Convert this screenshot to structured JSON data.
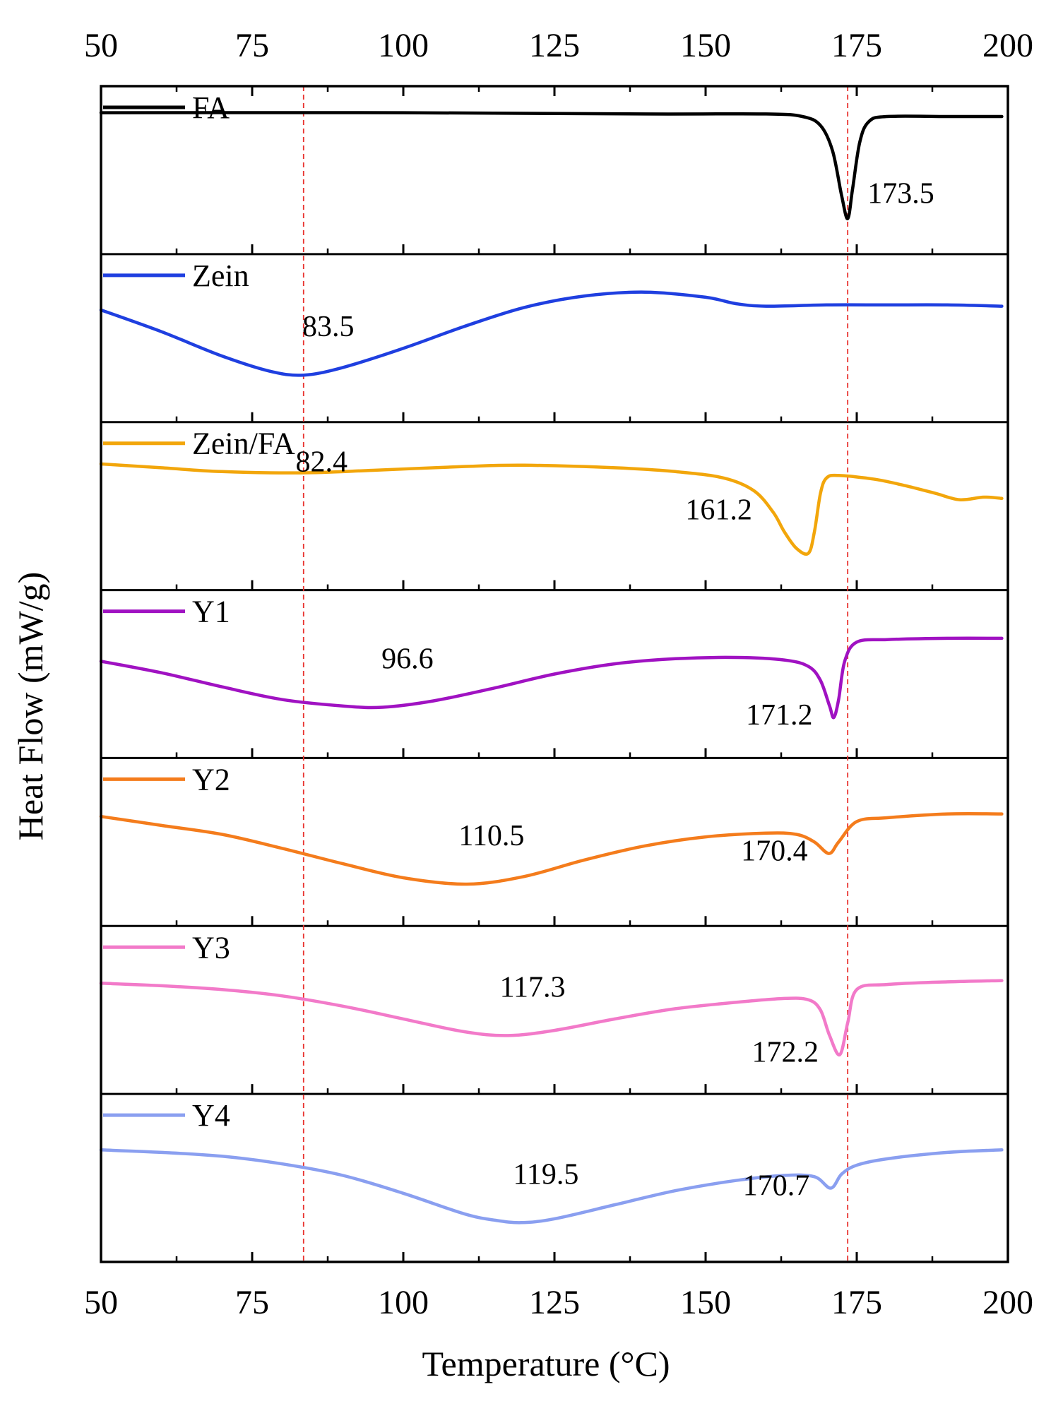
{
  "chart_data": {
    "type": "line",
    "title": "",
    "xlabel": "Temperature (°C)",
    "ylabel": "Heat Flow (mW/g)",
    "xlim": [
      50,
      200
    ],
    "xticks": [
      50,
      75,
      100,
      125,
      150,
      175,
      200
    ],
    "tick_labels": [
      "50",
      "75",
      "100",
      "125",
      "150",
      "175",
      "200"
    ],
    "reference_lines": [
      83.5,
      173.5
    ],
    "reference_color": "#e8322e",
    "series": [
      {
        "name": "FA",
        "color": "#000000",
        "points": [
          [
            50,
            0.95
          ],
          [
            100,
            0.95
          ],
          [
            140,
            0.94
          ],
          [
            160,
            0.94
          ],
          [
            166,
            0.92
          ],
          [
            169,
            0.85
          ],
          [
            171,
            0.65
          ],
          [
            172.5,
            0.3
          ],
          [
            173.5,
            0.12
          ],
          [
            174.3,
            0.35
          ],
          [
            175.5,
            0.72
          ],
          [
            177,
            0.88
          ],
          [
            180,
            0.92
          ],
          [
            190,
            0.92
          ],
          [
            199,
            0.92
          ]
        ],
        "labels": [
          {
            "text": "173.5",
            "x": 173.5
          }
        ]
      },
      {
        "name": "Zein",
        "color": "#1f3fe0",
        "points": [
          [
            50,
            0.72
          ],
          [
            60,
            0.55
          ],
          [
            70,
            0.36
          ],
          [
            78,
            0.24
          ],
          [
            83.5,
            0.21
          ],
          [
            90,
            0.27
          ],
          [
            100,
            0.42
          ],
          [
            110,
            0.59
          ],
          [
            120,
            0.74
          ],
          [
            130,
            0.83
          ],
          [
            140,
            0.86
          ],
          [
            150,
            0.82
          ],
          [
            155,
            0.77
          ],
          [
            160,
            0.75
          ],
          [
            170,
            0.76
          ],
          [
            180,
            0.76
          ],
          [
            190,
            0.76
          ],
          [
            199,
            0.75
          ]
        ],
        "labels": [
          {
            "text": "83.5",
            "x": 83.5
          }
        ]
      },
      {
        "name": "Zein/FA",
        "color": "#f2a60b",
        "points": [
          [
            50,
            0.83
          ],
          [
            60,
            0.8
          ],
          [
            70,
            0.77
          ],
          [
            83,
            0.76
          ],
          [
            95,
            0.78
          ],
          [
            110,
            0.81
          ],
          [
            120,
            0.82
          ],
          [
            135,
            0.8
          ],
          [
            145,
            0.77
          ],
          [
            153,
            0.72
          ],
          [
            158,
            0.62
          ],
          [
            161.2,
            0.45
          ],
          [
            163,
            0.3
          ],
          [
            165,
            0.17
          ],
          [
            167,
            0.13
          ],
          [
            168,
            0.3
          ],
          [
            169,
            0.6
          ],
          [
            170,
            0.72
          ],
          [
            172,
            0.74
          ],
          [
            178,
            0.71
          ],
          [
            183,
            0.66
          ],
          [
            188,
            0.6
          ],
          [
            192,
            0.55
          ],
          [
            196,
            0.57
          ],
          [
            199,
            0.56
          ]
        ],
        "labels": [
          {
            "text": "82.4",
            "x": 82.4
          },
          {
            "text": "161.2",
            "x": 161.2
          }
        ]
      },
      {
        "name": "Y1",
        "color": "#a012c2",
        "points": [
          [
            50,
            0.6
          ],
          [
            60,
            0.51
          ],
          [
            70,
            0.4
          ],
          [
            80,
            0.3
          ],
          [
            90,
            0.25
          ],
          [
            96.6,
            0.24
          ],
          [
            105,
            0.29
          ],
          [
            115,
            0.39
          ],
          [
            125,
            0.5
          ],
          [
            135,
            0.58
          ],
          [
            145,
            0.62
          ],
          [
            155,
            0.63
          ],
          [
            163,
            0.61
          ],
          [
            167,
            0.56
          ],
          [
            169,
            0.45
          ],
          [
            170.5,
            0.25
          ],
          [
            171.2,
            0.16
          ],
          [
            172,
            0.3
          ],
          [
            173,
            0.6
          ],
          [
            175,
            0.75
          ],
          [
            180,
            0.77
          ],
          [
            190,
            0.78
          ],
          [
            199,
            0.78
          ]
        ],
        "labels": [
          {
            "text": "96.6",
            "x": 96.6
          },
          {
            "text": "171.2",
            "x": 171.2
          }
        ]
      },
      {
        "name": "Y2",
        "color": "#f47c1c",
        "points": [
          [
            50,
            0.7
          ],
          [
            60,
            0.63
          ],
          [
            70,
            0.56
          ],
          [
            80,
            0.45
          ],
          [
            90,
            0.33
          ],
          [
            100,
            0.22
          ],
          [
            110.5,
            0.17
          ],
          [
            120,
            0.23
          ],
          [
            130,
            0.36
          ],
          [
            140,
            0.47
          ],
          [
            150,
            0.54
          ],
          [
            160,
            0.57
          ],
          [
            165,
            0.56
          ],
          [
            168,
            0.5
          ],
          [
            170.4,
            0.41
          ],
          [
            172,
            0.5
          ],
          [
            175,
            0.66
          ],
          [
            180,
            0.69
          ],
          [
            190,
            0.72
          ],
          [
            199,
            0.72
          ]
        ],
        "labels": [
          {
            "text": "110.5",
            "x": 110.5
          },
          {
            "text": "170.4",
            "x": 170.4
          }
        ]
      },
      {
        "name": "Y3",
        "color": "#f27ac9",
        "points": [
          [
            50,
            0.71
          ],
          [
            60,
            0.69
          ],
          [
            70,
            0.66
          ],
          [
            80,
            0.61
          ],
          [
            90,
            0.53
          ],
          [
            100,
            0.43
          ],
          [
            110,
            0.33
          ],
          [
            117.3,
            0.3
          ],
          [
            125,
            0.34
          ],
          [
            135,
            0.43
          ],
          [
            145,
            0.51
          ],
          [
            155,
            0.56
          ],
          [
            163,
            0.59
          ],
          [
            167,
            0.58
          ],
          [
            169,
            0.5
          ],
          [
            170.5,
            0.3
          ],
          [
            172.2,
            0.15
          ],
          [
            173.5,
            0.4
          ],
          [
            175,
            0.66
          ],
          [
            180,
            0.7
          ],
          [
            190,
            0.72
          ],
          [
            199,
            0.73
          ]
        ],
        "labels": [
          {
            "text": "117.3",
            "x": 117.3
          },
          {
            "text": "172.2",
            "x": 172.2
          }
        ]
      },
      {
        "name": "Y4",
        "color": "#8a9ff0",
        "points": [
          [
            50,
            0.72
          ],
          [
            60,
            0.7
          ],
          [
            70,
            0.67
          ],
          [
            80,
            0.61
          ],
          [
            90,
            0.52
          ],
          [
            100,
            0.38
          ],
          [
            110,
            0.22
          ],
          [
            115,
            0.17
          ],
          [
            119.5,
            0.15
          ],
          [
            125,
            0.18
          ],
          [
            135,
            0.29
          ],
          [
            145,
            0.4
          ],
          [
            155,
            0.48
          ],
          [
            163,
            0.52
          ],
          [
            168,
            0.51
          ],
          [
            170.7,
            0.42
          ],
          [
            172.5,
            0.53
          ],
          [
            175,
            0.6
          ],
          [
            180,
            0.65
          ],
          [
            190,
            0.7
          ],
          [
            199,
            0.72
          ]
        ],
        "labels": [
          {
            "text": "119.5",
            "x": 119.5
          },
          {
            "text": "170.7",
            "x": 170.7
          }
        ]
      }
    ]
  }
}
